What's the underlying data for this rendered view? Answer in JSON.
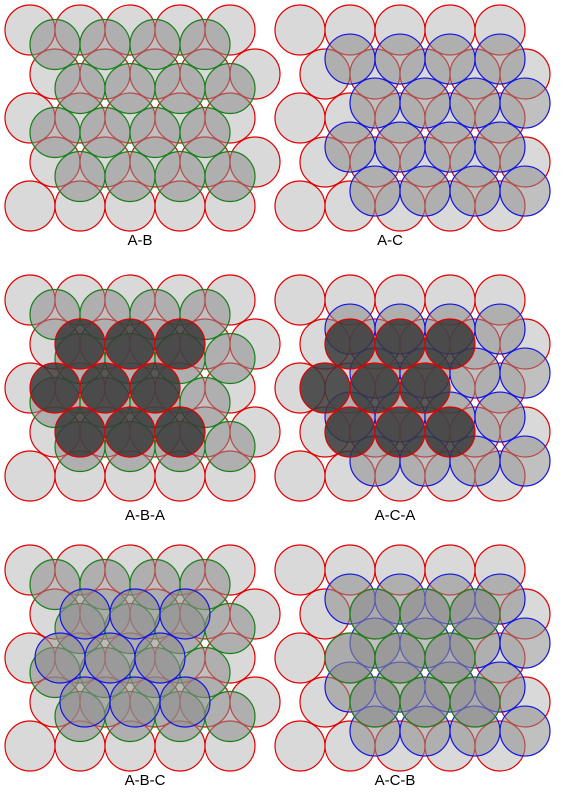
{
  "colors": {
    "background": "#ffffff",
    "sphere_fill_light": "#d9d9d9",
    "sphere_fill_mid": "#8c8c8c",
    "sphere_fill_dark": "#3a3a3a",
    "layer_A_stroke": "#e00000",
    "layer_B_stroke": "#1a7f1a",
    "layer_C_stroke": "#1515e0"
  },
  "panels": [
    {
      "id": "ab",
      "label": "A-B",
      "layers": [
        "A",
        "B"
      ]
    },
    {
      "id": "ac",
      "label": "A-C",
      "layers": [
        "A",
        "C"
      ]
    },
    {
      "id": "aba",
      "label": "A-B-A",
      "layers": [
        "A",
        "B",
        "A"
      ]
    },
    {
      "id": "aca",
      "label": "A-C-A",
      "layers": [
        "A",
        "C",
        "A"
      ]
    },
    {
      "id": "abc",
      "label": "A-B-C",
      "layers": [
        "A",
        "B",
        "C"
      ]
    },
    {
      "id": "acb",
      "label": "A-C-B",
      "layers": [
        "A",
        "C",
        "B"
      ]
    }
  ]
}
